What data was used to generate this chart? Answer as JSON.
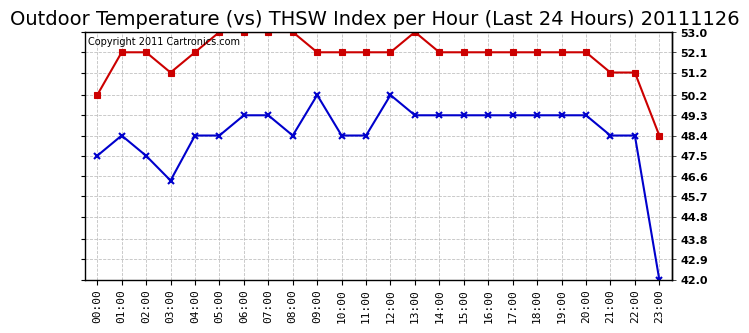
{
  "title": "Outdoor Temperature (vs) THSW Index per Hour (Last 24 Hours) 20111126",
  "copyright": "Copyright 2011 Cartronics.com",
  "x_labels": [
    "00:00",
    "01:00",
    "02:00",
    "03:00",
    "04:00",
    "05:00",
    "06:00",
    "07:00",
    "08:00",
    "09:00",
    "10:00",
    "11:00",
    "12:00",
    "13:00",
    "14:00",
    "15:00",
    "16:00",
    "17:00",
    "18:00",
    "19:00",
    "20:00",
    "21:00",
    "22:00",
    "23:00"
  ],
  "red_data": [
    50.2,
    52.1,
    52.1,
    51.2,
    52.1,
    53.0,
    53.0,
    53.0,
    53.0,
    52.1,
    52.1,
    52.1,
    52.1,
    53.0,
    52.1,
    52.1,
    52.1,
    52.1,
    52.1,
    52.1,
    52.1,
    51.2,
    51.2,
    48.4
  ],
  "blue_data": [
    47.5,
    48.4,
    47.5,
    46.4,
    48.4,
    48.4,
    49.3,
    49.3,
    48.4,
    50.2,
    48.4,
    48.4,
    50.2,
    49.3,
    49.3,
    49.3,
    49.3,
    49.3,
    49.3,
    49.3,
    49.3,
    48.4,
    48.4,
    42.0
  ],
  "ylim_min": 42.0,
  "ylim_max": 53.0,
  "yticks": [
    42.0,
    42.9,
    43.8,
    44.8,
    45.7,
    46.6,
    47.5,
    48.4,
    49.3,
    50.2,
    51.2,
    52.1,
    53.0
  ],
  "red_color": "#CC0000",
  "blue_color": "#0000CC",
  "bg_color": "#FFFFFF",
  "plot_bg_color": "#FFFFFF",
  "grid_color": "#BBBBBB",
  "title_fontsize": 14,
  "copyright_fontsize": 7,
  "tick_fontsize": 8,
  "marker_red": "s",
  "marker_blue": "x"
}
